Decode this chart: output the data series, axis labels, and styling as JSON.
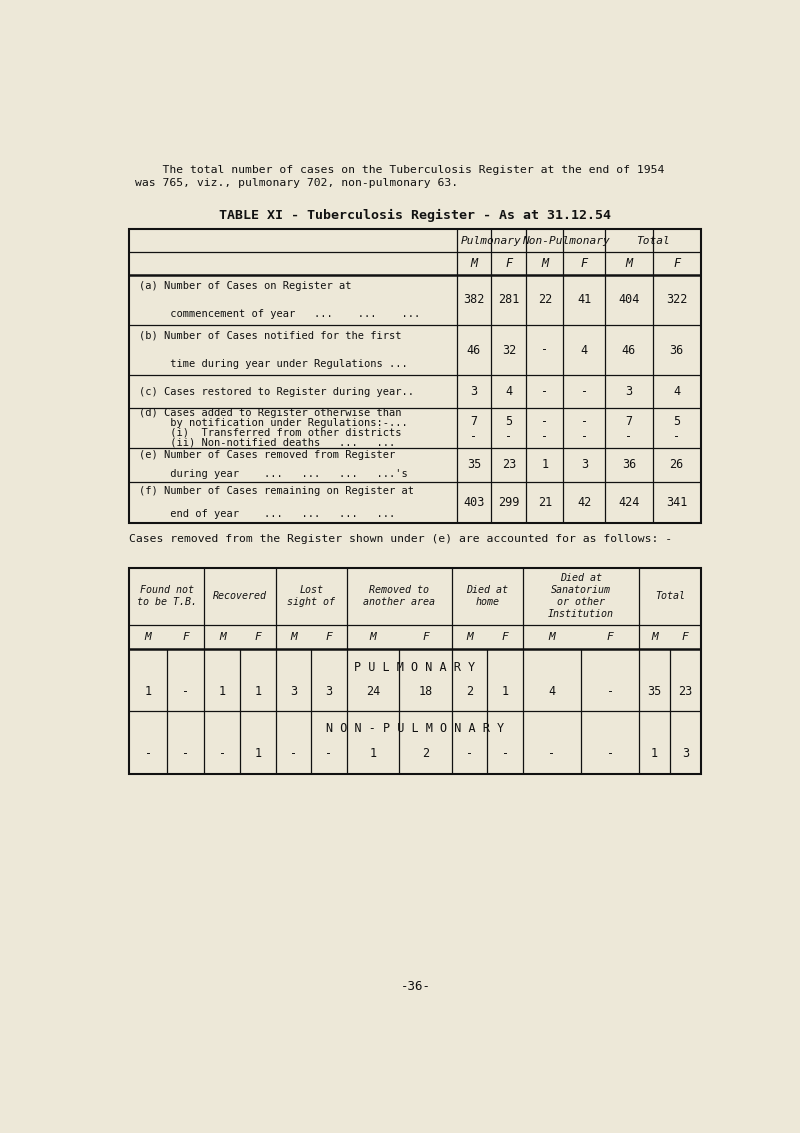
{
  "bg_color": "#ede8d8",
  "page_width": 8.0,
  "page_height": 11.33,
  "intro_line1": "    The total number of cases on the Tuberculosis Register at the end of 1954",
  "intro_line2": "was 765, viz., pulmonary 702, non-pulmonary 63.",
  "title": "TABLE XI - Tuberculosis Register - As at 31.12.54",
  "table1": {
    "col_headers": [
      "Pulmonary",
      "Non-Pulmonary",
      "Total"
    ],
    "col_subheaders": [
      "M",
      "F",
      "M",
      "F",
      "M",
      "F"
    ],
    "rows": [
      {
        "label_lines": [
          "(a) Number of Cases on Register at",
          "     commencement of year   ...    ...    ..."
        ],
        "values": [
          "382",
          "281",
          "22",
          "41",
          "404",
          "322"
        ]
      },
      {
        "label_lines": [
          "(b) Number of Cases notified for the first",
          "     time during year under Regulations ..."
        ],
        "values": [
          "46",
          "32",
          "-",
          "4",
          "46",
          "36"
        ]
      },
      {
        "label_lines": [
          "(c) Cases restored to Register during year.."
        ],
        "values": [
          "3",
          "4",
          "-",
          "-",
          "3",
          "4"
        ]
      },
      {
        "label_lines": [
          "(d) Cases added to Register otherwise than",
          "     by notification under Regulations:-...",
          "     (i)  Transferred from other districts",
          "     (ii) Non-notified deaths   ...   ..."
        ],
        "values_i": [
          "7",
          "5",
          "-",
          "-",
          "7",
          "5"
        ],
        "values_ii": [
          "-",
          "-",
          "-",
          "-",
          "-",
          "-"
        ]
      },
      {
        "label_lines": [
          "(e) Number of Cases removed from Register",
          "     during year    ...   ...   ...   ...'s"
        ],
        "values": [
          "35",
          "23",
          "1",
          "3",
          "36",
          "26"
        ]
      },
      {
        "label_lines": [
          "(f) Number of Cases remaining on Register at",
          "     end of year    ...   ...   ...   ..."
        ],
        "values": [
          "403",
          "299",
          "21",
          "42",
          "424",
          "341"
        ]
      }
    ]
  },
  "separator_text": "Cases removed from the Register shown under (e) are accounted for as follows: -",
  "table2": {
    "col_headers": [
      "Found not\nto be T.B.",
      "Recovered",
      "Lost\nsight of",
      "Removed to\nanother area",
      "Died at\nhome",
      "Died at\nSanatorium\nor other\nInstitution",
      "Total"
    ],
    "col_subheaders": [
      "M",
      "F",
      "M",
      "F",
      "M",
      "F",
      "M",
      "F",
      "M",
      "F",
      "M",
      "F",
      "M",
      "F"
    ],
    "row_pulmonary_label": "P U L M O N A R Y",
    "row_pulmonary": [
      "1",
      "-",
      "1",
      "1",
      "3",
      "3",
      "24",
      "18",
      "2",
      "1",
      "4",
      "-",
      "35",
      "23"
    ],
    "row_nonpulmonary_label": "N O N - P U L M O N A R Y",
    "row_nonpulmonary": [
      "-",
      "-",
      "-",
      "1",
      "-",
      "-",
      "1",
      "2",
      "-",
      "-",
      "-",
      "-",
      "1",
      "3"
    ]
  },
  "page_number": "-36-",
  "font_color": "#111111",
  "table_line_color": "#111111"
}
